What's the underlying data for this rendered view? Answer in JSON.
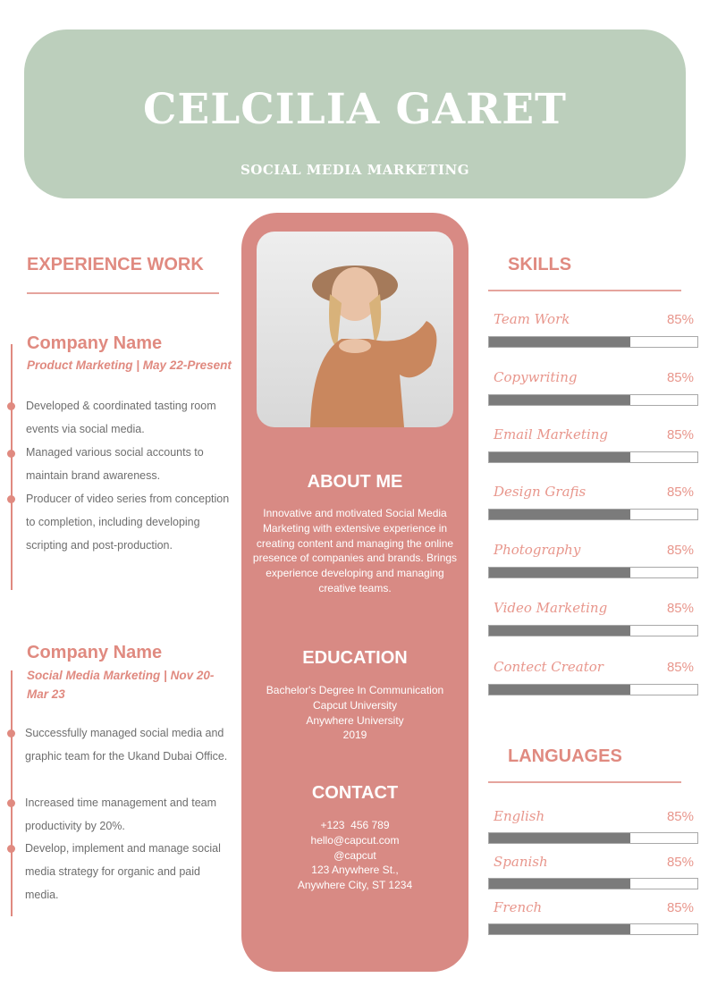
{
  "header": {
    "name": "CELCILIA GARET",
    "role": "SOCIAL MEDIA MARKETING"
  },
  "colors": {
    "header_bg": "#bccfbc",
    "accent": "#d88a84",
    "bar_fill": "#7b7b7b"
  },
  "experience": {
    "title": "EXPERIENCE WORK",
    "jobs": [
      {
        "company": "Company Name",
        "subtitle": "Product Marketing | May 22-Present",
        "bullets": [
          "Developed & coordinated tasting room events via social media.",
          "Managed various social accounts to maintain brand awareness.",
          "Producer of video series from conception to completion, including developing scripting and post-production."
        ]
      },
      {
        "company": "Company Name",
        "subtitle": "Social Media Marketing | Nov 20-Mar 23",
        "bullets": [
          "Successfully managed social media and graphic team for the Ukand Dubai Office.",
          "Increased time management and team productivity by 20%.",
          "Develop, implement and manage social media strategy for organic and paid media."
        ]
      }
    ]
  },
  "about": {
    "title": "ABOUT ME",
    "text": "Innovative and motivated Social Media Marketing with extensive experience in creating content and managing the online presence of companies and brands. Brings experience developing and managing creative teams."
  },
  "education": {
    "title": "EDUCATION",
    "lines": [
      "Bachelor's Degree In Communication",
      "Capcut University",
      "Anywhere University",
      "2019"
    ]
  },
  "contact": {
    "title": "CONTACT",
    "lines": [
      "+123  456 789",
      "hello@capcut.com",
      "@capcut",
      "123 Anywhere St.,",
      "Anywhere City, ST 1234"
    ]
  },
  "skills": {
    "title": "SKILLS",
    "items": [
      {
        "label": "Team Work",
        "value": "85%"
      },
      {
        "label": "Copywriting",
        "value": "85%"
      },
      {
        "label": "Email Marketing",
        "value": "85%"
      },
      {
        "label": "Design Grafis",
        "value": "85%"
      },
      {
        "label": "Photography",
        "value": "85%"
      },
      {
        "label": "Video Marketing",
        "value": "85%"
      },
      {
        "label": "Contect Creator",
        "value": "85%"
      }
    ]
  },
  "languages": {
    "title": "LANGUAGES",
    "items": [
      {
        "label": "English",
        "value": "85%"
      },
      {
        "label": "Spanish",
        "value": "85%"
      },
      {
        "label": "French",
        "value": "85%"
      }
    ]
  }
}
